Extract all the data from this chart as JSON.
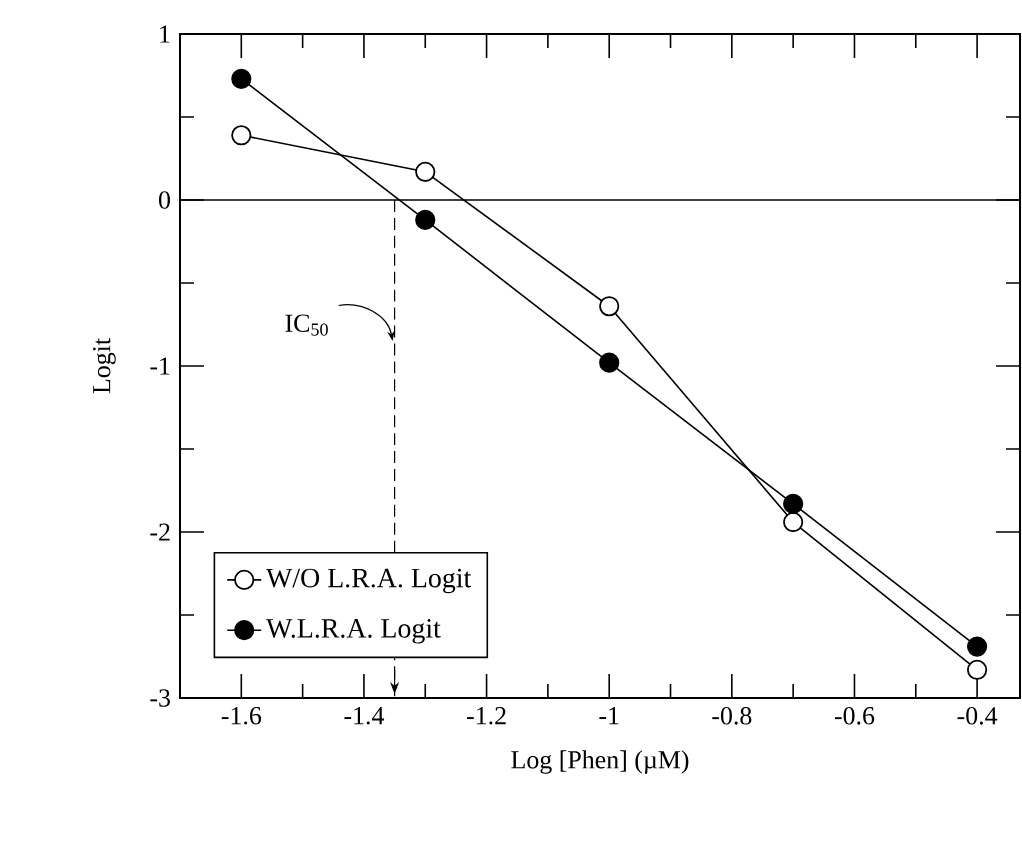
{
  "chart_data": {
    "type": "line",
    "xlabel": "Log [Phen] (µM)",
    "ylabel": "Logit",
    "x": [
      -1.6,
      -1.3,
      -1.0,
      -0.7,
      -0.4
    ],
    "series": [
      {
        "name": "W/O L.R.A. Logit",
        "color": "#ffffff",
        "values": [
          0.39,
          0.17,
          -0.64,
          -1.94,
          -2.83
        ]
      },
      {
        "name": "W.L.R.A. Logit",
        "color": "#000000",
        "values": [
          0.73,
          -0.12,
          -0.98,
          -1.83,
          -2.69
        ]
      }
    ],
    "xlim": [
      -1.7,
      -0.33
    ],
    "ylim": [
      -3,
      1
    ],
    "xticks": [
      -1.6,
      -1.4,
      -1.2,
      -1,
      -0.8,
      -0.6,
      -0.4
    ],
    "yticks": [
      -3,
      -2,
      -1,
      0,
      1
    ],
    "ref_lines": [
      {
        "axis": "y",
        "value": 0,
        "line_style": "solid"
      },
      {
        "axis": "x",
        "value": -1.35,
        "line_style": "dashed"
      }
    ],
    "annotations": [
      {
        "text": "IC$_{50}$",
        "x": -1.35,
        "y": -0.85
      }
    ],
    "marker": "circle",
    "legend": "bottom left",
    "grid": false
  }
}
